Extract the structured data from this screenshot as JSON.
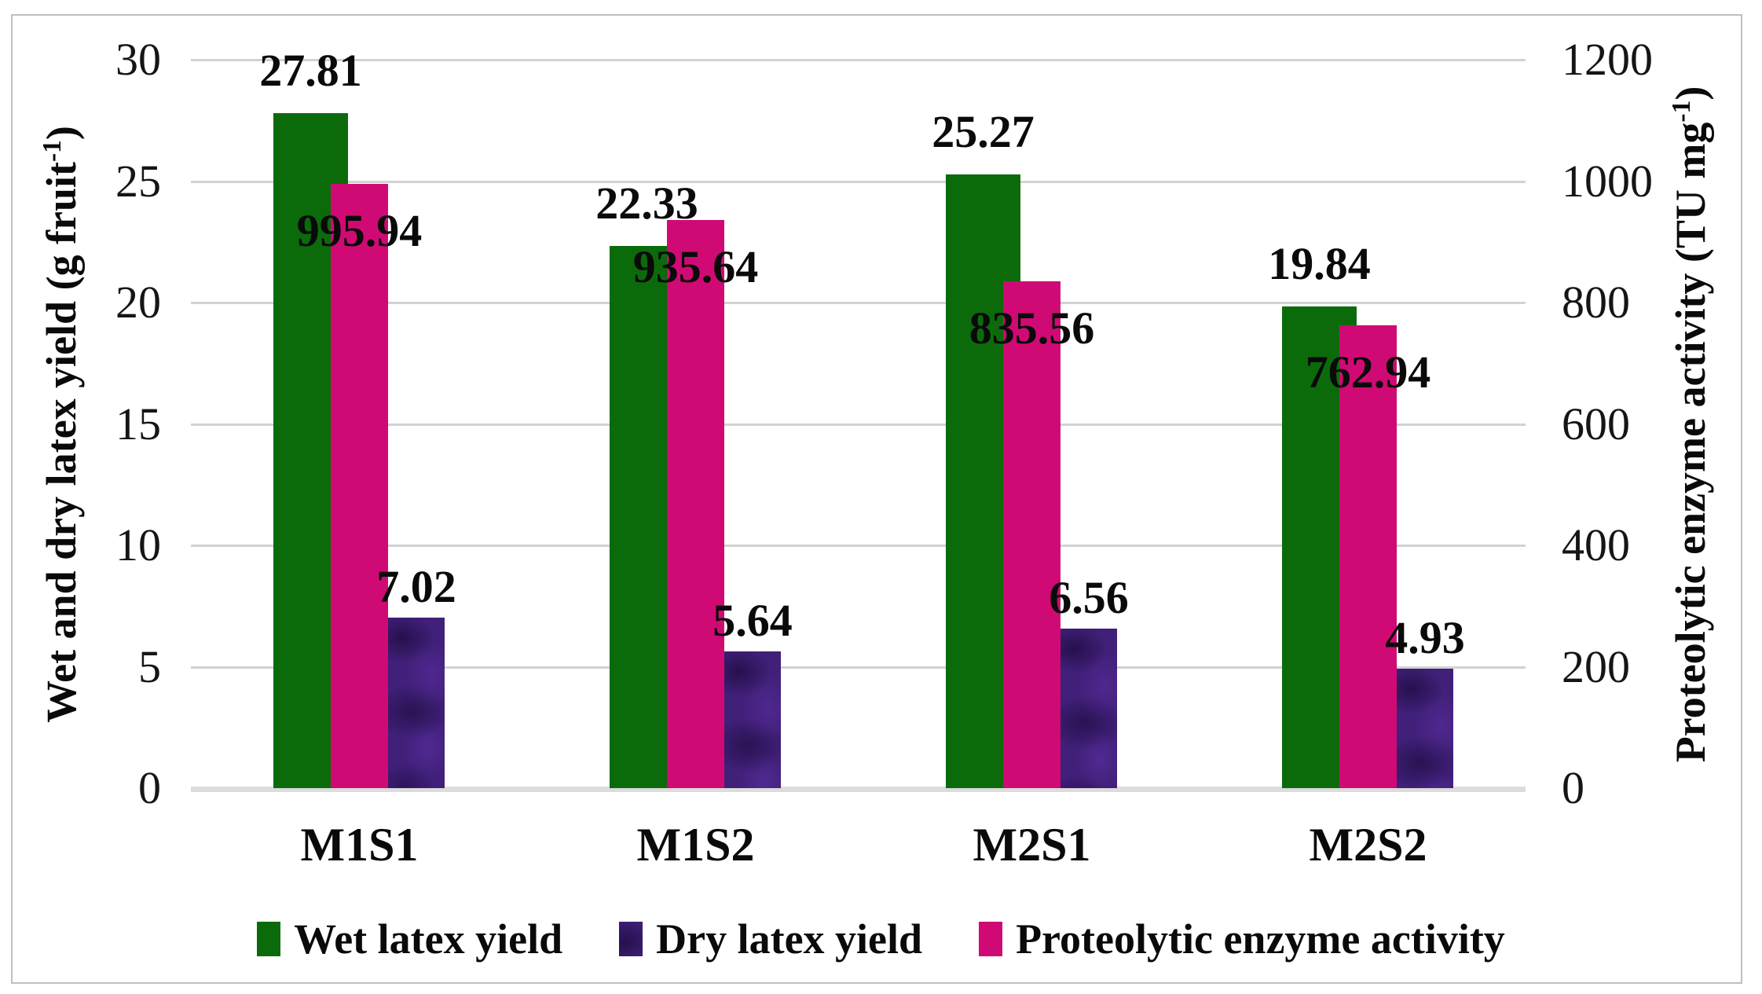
{
  "chart_data": {
    "type": "bar",
    "subtype": "grouped-dual-axis",
    "categories": [
      "M1S1",
      "M1S2",
      "M2S1",
      "M2S2"
    ],
    "series": [
      {
        "name": "Wet latex yield",
        "axis": "left",
        "color": "#0b6b0b",
        "textured": false,
        "values": [
          27.81,
          22.33,
          25.27,
          19.84
        ],
        "data_labels": [
          "27.81",
          "22.33",
          "25.27",
          "19.84"
        ],
        "label_placement": "above"
      },
      {
        "name": "Proteolytic enzyme activity",
        "axis": "right",
        "color": "#d00a74",
        "textured": false,
        "values": [
          995.94,
          935.64,
          835.56,
          762.94
        ],
        "data_labels": [
          "995.94",
          "935.64",
          "835.56",
          "762.94"
        ],
        "label_placement": "inside-top"
      },
      {
        "name": "Dry latex yield",
        "axis": "left",
        "color": "#41207a",
        "textured": true,
        "values": [
          7.02,
          5.64,
          6.56,
          4.93
        ],
        "data_labels": [
          "7.02",
          "5.64",
          "6.56",
          "4.93"
        ],
        "label_placement": "above"
      }
    ],
    "left_axis": {
      "title_full": "Wet and dry latex yield (g fruit⁻¹)",
      "title_pre": "Wet and dry latex yield (g fruit",
      "title_sup": "-1",
      "title_post": ")",
      "min": 0,
      "max": 30,
      "ticks": [
        0,
        5,
        10,
        15,
        20,
        25,
        30
      ],
      "tick_labels": [
        "0",
        "5",
        "10",
        "15",
        "20",
        "25",
        "30"
      ]
    },
    "right_axis": {
      "title_full": "Proteolytic enzyme activity (TU mg⁻¹)",
      "title_pre": "Proteolytic enzyme activity (TU mg",
      "title_sup": "-1",
      "title_post": ")",
      "min": 0,
      "max": 1200,
      "ticks": [
        0,
        200,
        400,
        600,
        800,
        1000,
        1200
      ],
      "tick_labels": [
        "0",
        "200",
        "400",
        "600",
        "800",
        "1000",
        "1200"
      ]
    },
    "legend": [
      {
        "label": "Wet latex yield",
        "color": "#0b6b0b",
        "textured": false
      },
      {
        "label": "Dry latex yield",
        "color": "#41207a",
        "textured": true
      },
      {
        "label": "Proteolytic enzyme activity",
        "color": "#d00a74",
        "textured": false
      }
    ],
    "legend_position": "bottom",
    "grid": true
  },
  "colors": {
    "gridline": "#d2d2d2",
    "baseline": "#dcdcdc",
    "frame_border": "#bfbfbf",
    "bar_green": "#0b6b0b",
    "bar_pink": "#d00a74",
    "bar_purple": "#41207a",
    "text": "#0a0a0a",
    "background": "#ffffff"
  }
}
